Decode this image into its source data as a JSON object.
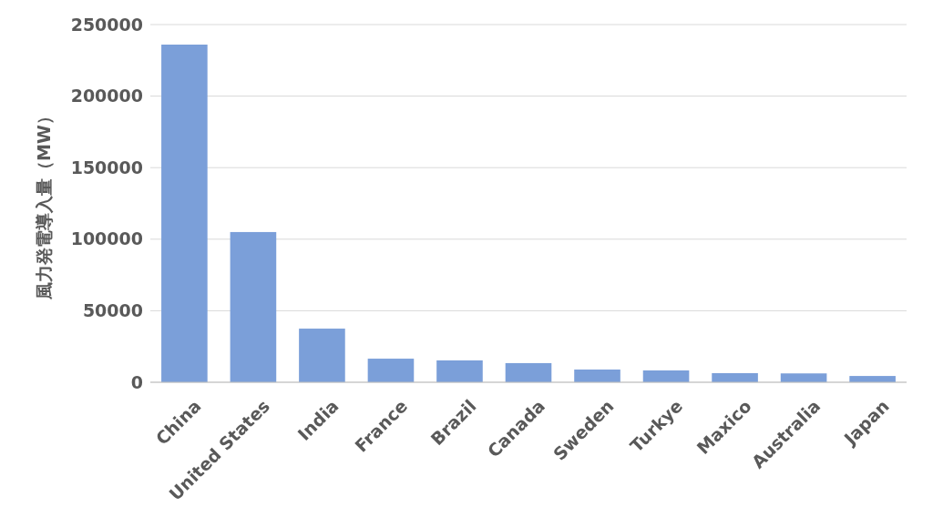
{
  "chart_data": {
    "type": "bar",
    "ylabel": "風力発電導入量（MW）",
    "categories": [
      "China",
      "United States",
      "India",
      "France",
      "Brazil",
      "Canada",
      "Sweden",
      "Turkye",
      "Maxico",
      "Australia",
      "Japan"
    ],
    "values": [
      236000,
      105000,
      37500,
      16500,
      15300,
      13400,
      8900,
      8300,
      6400,
      6200,
      4400
    ],
    "color": "#7b9fd9",
    "ylim": [
      0,
      250000
    ],
    "yticks": [
      0,
      50000,
      100000,
      150000,
      200000,
      250000
    ],
    "grid": "y"
  }
}
